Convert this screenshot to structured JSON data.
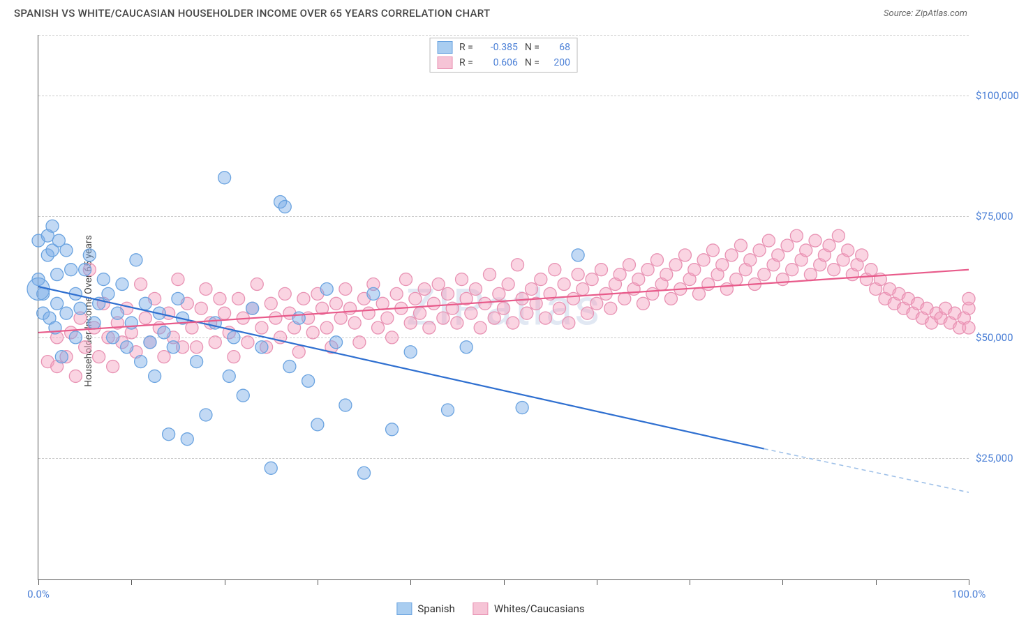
{
  "header": {
    "title": "SPANISH VS WHITE/CAUCASIAN HOUSEHOLDER INCOME OVER 65 YEARS CORRELATION CHART",
    "source": "Source: ZipAtlas.com"
  },
  "chart": {
    "type": "scatter",
    "ylabel": "Householder Income Over 65 years",
    "watermark": "ZIPatlas",
    "background_color": "#ffffff",
    "grid_color": "#cccccc",
    "axis_color": "#555555",
    "xlim": [
      0,
      100
    ],
    "ylim": [
      0,
      112500
    ],
    "yticks": [
      25000,
      50000,
      75000,
      100000
    ],
    "ytick_labels": [
      "$25,000",
      "$50,000",
      "$75,000",
      "$100,000"
    ],
    "ytick_color": "#4a7fd6",
    "xtick_positions": [
      0,
      10,
      20,
      30,
      40,
      50,
      60,
      70,
      80,
      90,
      100
    ],
    "xtick_labels": {
      "start": "0.0%",
      "end": "100.0%"
    },
    "xtick_color": "#4a7fd6",
    "series": [
      {
        "name": "Spanish",
        "color_fill": "rgba(120,170,230,0.45)",
        "color_stroke": "#6aa3e0",
        "swatch_fill": "#a9cdf0",
        "swatch_border": "#6aa3e0",
        "trend_color": "#2e6fd0",
        "trend_dash_color": "#9ec0e8",
        "marker_r": 9,
        "R": "-0.385",
        "N": "68",
        "trend": {
          "x1": 0,
          "y1": 60500,
          "x2": 78,
          "y2": 27000,
          "dash_x2": 100,
          "dash_y2": 18000
        },
        "points": [
          [
            0,
            62000
          ],
          [
            0,
            70000
          ],
          [
            0.5,
            59000
          ],
          [
            0.5,
            55000
          ],
          [
            1,
            67000
          ],
          [
            1,
            71000
          ],
          [
            1.2,
            54000
          ],
          [
            1.5,
            68000
          ],
          [
            1.5,
            73000
          ],
          [
            1.8,
            52000
          ],
          [
            2,
            63000
          ],
          [
            2,
            57000
          ],
          [
            2.2,
            70000
          ],
          [
            2.5,
            46000
          ],
          [
            3,
            68000
          ],
          [
            3,
            55000
          ],
          [
            3.5,
            64000
          ],
          [
            4,
            59000
          ],
          [
            4,
            50000
          ],
          [
            4.5,
            56000
          ],
          [
            5,
            64000
          ],
          [
            5.5,
            67000
          ],
          [
            6,
            53000
          ],
          [
            6.5,
            57000
          ],
          [
            7,
            62000
          ],
          [
            7.5,
            59000
          ],
          [
            8,
            50000
          ],
          [
            8.5,
            55000
          ],
          [
            9,
            61000
          ],
          [
            9.5,
            48000
          ],
          [
            10,
            53000
          ],
          [
            10.5,
            66000
          ],
          [
            11,
            45000
          ],
          [
            11.5,
            57000
          ],
          [
            12,
            49000
          ],
          [
            12.5,
            42000
          ],
          [
            13,
            55000
          ],
          [
            13.5,
            51000
          ],
          [
            14,
            30000
          ],
          [
            14.5,
            48000
          ],
          [
            15,
            58000
          ],
          [
            15.5,
            54000
          ],
          [
            16,
            29000
          ],
          [
            17,
            45000
          ],
          [
            18,
            34000
          ],
          [
            19,
            53000
          ],
          [
            20,
            83000
          ],
          [
            20.5,
            42000
          ],
          [
            21,
            50000
          ],
          [
            22,
            38000
          ],
          [
            23,
            56000
          ],
          [
            24,
            48000
          ],
          [
            25,
            23000
          ],
          [
            26,
            78000
          ],
          [
            26.5,
            77000
          ],
          [
            27,
            44000
          ],
          [
            28,
            54000
          ],
          [
            29,
            41000
          ],
          [
            30,
            32000
          ],
          [
            31,
            60000
          ],
          [
            32,
            49000
          ],
          [
            33,
            36000
          ],
          [
            35,
            22000
          ],
          [
            36,
            59000
          ],
          [
            38,
            31000
          ],
          [
            40,
            47000
          ],
          [
            44,
            35000
          ],
          [
            46,
            48000
          ],
          [
            52,
            35500
          ],
          [
            58,
            67000
          ]
        ],
        "large_points": [
          [
            0,
            60000,
            16
          ]
        ]
      },
      {
        "name": "Whites/Caucasians",
        "color_fill": "rgba(244,160,190,0.45)",
        "color_stroke": "#e892b3",
        "swatch_fill": "#f6c4d6",
        "swatch_border": "#e892b3",
        "trend_color": "#e85a8a",
        "marker_r": 9,
        "R": "0.606",
        "N": "200",
        "trend": {
          "x1": 0,
          "y1": 51000,
          "x2": 100,
          "y2": 64000
        },
        "points": [
          [
            1,
            45000
          ],
          [
            2,
            44000
          ],
          [
            2,
            50000
          ],
          [
            3,
            46000
          ],
          [
            3.5,
            51000
          ],
          [
            4,
            42000
          ],
          [
            4.5,
            54000
          ],
          [
            5,
            48000
          ],
          [
            5.5,
            64000
          ],
          [
            6,
            52000
          ],
          [
            6.5,
            46000
          ],
          [
            7,
            57000
          ],
          [
            7.5,
            50000
          ],
          [
            8,
            44000
          ],
          [
            8.5,
            53000
          ],
          [
            9,
            49000
          ],
          [
            9.5,
            56000
          ],
          [
            10,
            51000
          ],
          [
            10.5,
            47000
          ],
          [
            11,
            61000
          ],
          [
            11.5,
            54000
          ],
          [
            12,
            49000
          ],
          [
            12.5,
            58000
          ],
          [
            13,
            52000
          ],
          [
            13.5,
            46000
          ],
          [
            14,
            55000
          ],
          [
            14.5,
            50000
          ],
          [
            15,
            62000
          ],
          [
            15.5,
            48000
          ],
          [
            16,
            57000
          ],
          [
            16.5,
            52000
          ],
          [
            17,
            48000
          ],
          [
            17.5,
            56000
          ],
          [
            18,
            60000
          ],
          [
            18.5,
            53000
          ],
          [
            19,
            49000
          ],
          [
            19.5,
            58000
          ],
          [
            20,
            55000
          ],
          [
            20.5,
            51000
          ],
          [
            21,
            46000
          ],
          [
            21.5,
            58000
          ],
          [
            22,
            54000
          ],
          [
            22.5,
            49000
          ],
          [
            23,
            56000
          ],
          [
            23.5,
            61000
          ],
          [
            24,
            52000
          ],
          [
            24.5,
            48000
          ],
          [
            25,
            57000
          ],
          [
            25.5,
            54000
          ],
          [
            26,
            50000
          ],
          [
            26.5,
            59000
          ],
          [
            27,
            55000
          ],
          [
            27.5,
            52000
          ],
          [
            28,
            47000
          ],
          [
            28.5,
            58000
          ],
          [
            29,
            54000
          ],
          [
            29.5,
            51000
          ],
          [
            30,
            59000
          ],
          [
            30.5,
            56000
          ],
          [
            31,
            52000
          ],
          [
            31.5,
            48000
          ],
          [
            32,
            57000
          ],
          [
            32.5,
            54000
          ],
          [
            33,
            60000
          ],
          [
            33.5,
            56000
          ],
          [
            34,
            53000
          ],
          [
            34.5,
            49000
          ],
          [
            35,
            58000
          ],
          [
            35.5,
            55000
          ],
          [
            36,
            61000
          ],
          [
            36.5,
            52000
          ],
          [
            37,
            57000
          ],
          [
            37.5,
            54000
          ],
          [
            38,
            50000
          ],
          [
            38.5,
            59000
          ],
          [
            39,
            56000
          ],
          [
            39.5,
            62000
          ],
          [
            40,
            53000
          ],
          [
            40.5,
            58000
          ],
          [
            41,
            55000
          ],
          [
            41.5,
            60000
          ],
          [
            42,
            52000
          ],
          [
            42.5,
            57000
          ],
          [
            43,
            61000
          ],
          [
            43.5,
            54000
          ],
          [
            44,
            59000
          ],
          [
            44.5,
            56000
          ],
          [
            45,
            53000
          ],
          [
            45.5,
            62000
          ],
          [
            46,
            58000
          ],
          [
            46.5,
            55000
          ],
          [
            47,
            60000
          ],
          [
            47.5,
            52000
          ],
          [
            48,
            57000
          ],
          [
            48.5,
            63000
          ],
          [
            49,
            54000
          ],
          [
            49.5,
            59000
          ],
          [
            50,
            56000
          ],
          [
            50.5,
            61000
          ],
          [
            51,
            53000
          ],
          [
            51.5,
            65000
          ],
          [
            52,
            58000
          ],
          [
            52.5,
            55000
          ],
          [
            53,
            60000
          ],
          [
            53.5,
            57000
          ],
          [
            54,
            62000
          ],
          [
            54.5,
            54000
          ],
          [
            55,
            59000
          ],
          [
            55.5,
            64000
          ],
          [
            56,
            56000
          ],
          [
            56.5,
            61000
          ],
          [
            57,
            53000
          ],
          [
            57.5,
            58000
          ],
          [
            58,
            63000
          ],
          [
            58.5,
            60000
          ],
          [
            59,
            55000
          ],
          [
            59.5,
            62000
          ],
          [
            60,
            57000
          ],
          [
            60.5,
            64000
          ],
          [
            61,
            59000
          ],
          [
            61.5,
            56000
          ],
          [
            62,
            61000
          ],
          [
            62.5,
            63000
          ],
          [
            63,
            58000
          ],
          [
            63.5,
            65000
          ],
          [
            64,
            60000
          ],
          [
            64.5,
            62000
          ],
          [
            65,
            57000
          ],
          [
            65.5,
            64000
          ],
          [
            66,
            59000
          ],
          [
            66.5,
            66000
          ],
          [
            67,
            61000
          ],
          [
            67.5,
            63000
          ],
          [
            68,
            58000
          ],
          [
            68.5,
            65000
          ],
          [
            69,
            60000
          ],
          [
            69.5,
            67000
          ],
          [
            70,
            62000
          ],
          [
            70.5,
            64000
          ],
          [
            71,
            59000
          ],
          [
            71.5,
            66000
          ],
          [
            72,
            61000
          ],
          [
            72.5,
            68000
          ],
          [
            73,
            63000
          ],
          [
            73.5,
            65000
          ],
          [
            74,
            60000
          ],
          [
            74.5,
            67000
          ],
          [
            75,
            62000
          ],
          [
            75.5,
            69000
          ],
          [
            76,
            64000
          ],
          [
            76.5,
            66000
          ],
          [
            77,
            61000
          ],
          [
            77.5,
            68000
          ],
          [
            78,
            63000
          ],
          [
            78.5,
            70000
          ],
          [
            79,
            65000
          ],
          [
            79.5,
            67000
          ],
          [
            80,
            62000
          ],
          [
            80.5,
            69000
          ],
          [
            81,
            64000
          ],
          [
            81.5,
            71000
          ],
          [
            82,
            66000
          ],
          [
            82.5,
            68000
          ],
          [
            83,
            63000
          ],
          [
            83.5,
            70000
          ],
          [
            84,
            65000
          ],
          [
            84.5,
            67000
          ],
          [
            85,
            69000
          ],
          [
            85.5,
            64000
          ],
          [
            86,
            71000
          ],
          [
            86.5,
            66000
          ],
          [
            87,
            68000
          ],
          [
            87.5,
            63000
          ],
          [
            88,
            65000
          ],
          [
            88.5,
            67000
          ],
          [
            89,
            62000
          ],
          [
            89.5,
            64000
          ],
          [
            90,
            60000
          ],
          [
            90.5,
            62000
          ],
          [
            91,
            58000
          ],
          [
            91.5,
            60000
          ],
          [
            92,
            57000
          ],
          [
            92.5,
            59000
          ],
          [
            93,
            56000
          ],
          [
            93.5,
            58000
          ],
          [
            94,
            55000
          ],
          [
            94.5,
            57000
          ],
          [
            95,
            54000
          ],
          [
            95.5,
            56000
          ],
          [
            96,
            53000
          ],
          [
            96.5,
            55000
          ],
          [
            97,
            54000
          ],
          [
            97.5,
            56000
          ],
          [
            98,
            53000
          ],
          [
            98.5,
            55000
          ],
          [
            99,
            52000
          ],
          [
            99.5,
            54000
          ],
          [
            100,
            56000
          ],
          [
            100,
            52000
          ],
          [
            100,
            58000
          ]
        ]
      }
    ],
    "legend_bottom": [
      {
        "label": "Spanish",
        "swatch_fill": "#a9cdf0",
        "swatch_border": "#6aa3e0"
      },
      {
        "label": "Whites/Caucasians",
        "swatch_fill": "#f6c4d6",
        "swatch_border": "#e892b3"
      }
    ]
  }
}
